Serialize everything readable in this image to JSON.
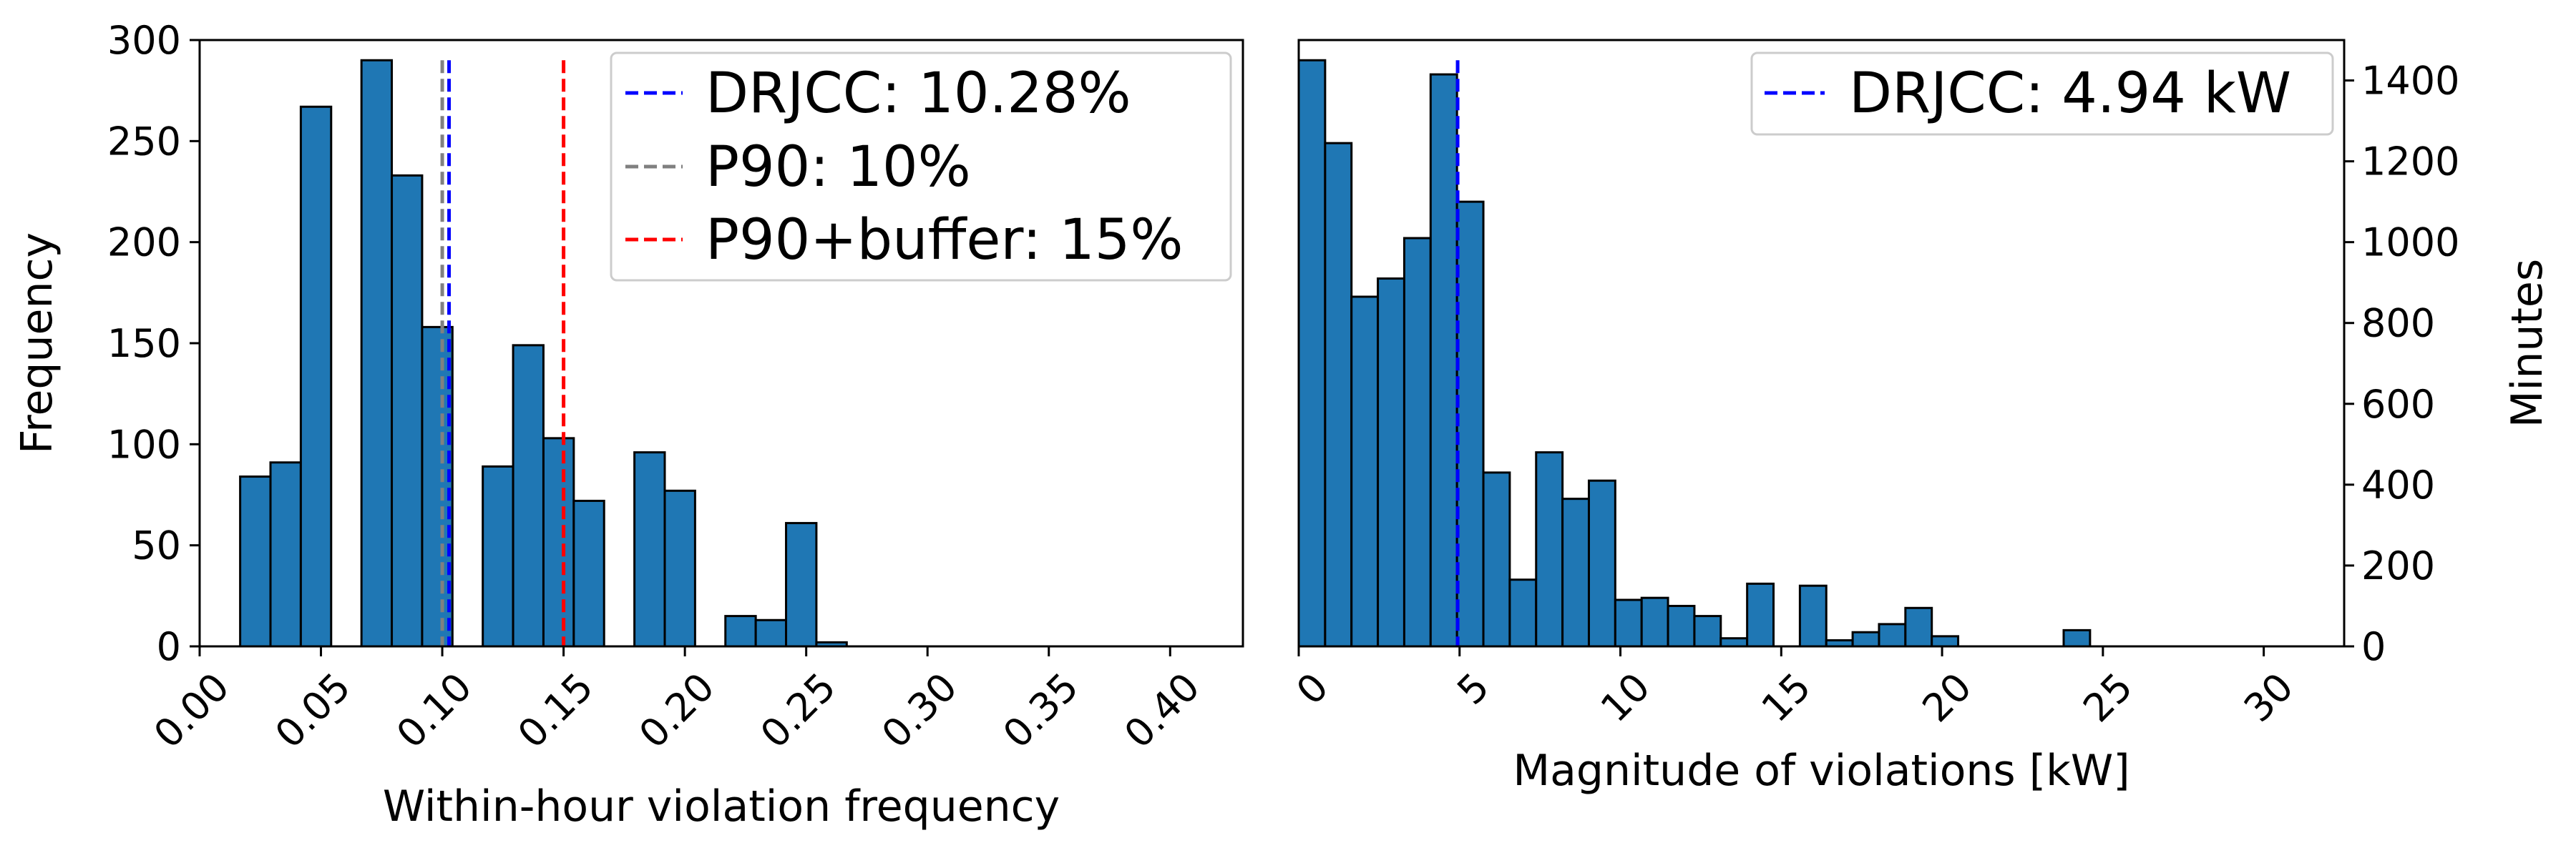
{
  "chart_data": [
    {
      "type": "bar",
      "subtype": "histogram",
      "xlabel": "Within-hour violation frequency",
      "ylabel": "Frequency",
      "xlim": [
        0.0,
        0.43
      ],
      "ylim": [
        0,
        300
      ],
      "xticks": [
        0.0,
        0.05,
        0.1,
        0.15,
        0.2,
        0.25,
        0.3,
        0.35,
        0.4
      ],
      "xtick_labels": [
        "0.00",
        "0.05",
        "0.10",
        "0.15",
        "0.20",
        "0.25",
        "0.30",
        "0.35",
        "0.40"
      ],
      "yticks": [
        0,
        50,
        100,
        150,
        200,
        250,
        300
      ],
      "ytick_labels": [
        "0",
        "50",
        "100",
        "150",
        "200",
        "250",
        "300"
      ],
      "bar_color": "#1f77b4",
      "bins": [
        {
          "x0": 0.0167,
          "x1": 0.0292,
          "value": 84
        },
        {
          "x0": 0.0292,
          "x1": 0.0417,
          "value": 91
        },
        {
          "x0": 0.0417,
          "x1": 0.0542,
          "value": 267
        },
        {
          "x0": 0.0542,
          "x1": 0.0667,
          "value": 0
        },
        {
          "x0": 0.0667,
          "x1": 0.0792,
          "value": 290
        },
        {
          "x0": 0.0792,
          "x1": 0.0917,
          "value": 233
        },
        {
          "x0": 0.0917,
          "x1": 0.1042,
          "value": 158
        },
        {
          "x0": 0.1042,
          "x1": 0.1167,
          "value": 0
        },
        {
          "x0": 0.1167,
          "x1": 0.1292,
          "value": 89
        },
        {
          "x0": 0.1292,
          "x1": 0.1417,
          "value": 149
        },
        {
          "x0": 0.1417,
          "x1": 0.1542,
          "value": 103
        },
        {
          "x0": 0.1542,
          "x1": 0.1667,
          "value": 72
        },
        {
          "x0": 0.1667,
          "x1": 0.1792,
          "value": 0
        },
        {
          "x0": 0.1792,
          "x1": 0.1917,
          "value": 96
        },
        {
          "x0": 0.1917,
          "x1": 0.2042,
          "value": 77
        },
        {
          "x0": 0.2042,
          "x1": 0.2167,
          "value": 0
        },
        {
          "x0": 0.2167,
          "x1": 0.2292,
          "value": 15
        },
        {
          "x0": 0.2292,
          "x1": 0.2417,
          "value": 13
        },
        {
          "x0": 0.2417,
          "x1": 0.2542,
          "value": 61
        },
        {
          "x0": 0.2542,
          "x1": 0.2667,
          "value": 2
        }
      ],
      "vlines": [
        {
          "label": "P90: 10%",
          "x": 0.1,
          "color": "#808080"
        },
        {
          "label": "DRJCC: 10.28%",
          "x": 0.1028,
          "color": "#0000ff"
        },
        {
          "label": "P90+buffer: 15%",
          "x": 0.15,
          "color": "#ff0000"
        }
      ],
      "vline_top": 290,
      "legend": {
        "placement": "top-right",
        "entries": [
          {
            "label": "DRJCC: 10.28%",
            "color": "#0000ff"
          },
          {
            "label": "P90: 10%",
            "color": "#808080"
          },
          {
            "label": "P90+buffer: 15%",
            "color": "#ff0000"
          }
        ]
      }
    },
    {
      "type": "bar",
      "subtype": "histogram",
      "xlabel": "Magnitude of violations [kW]",
      "ylabel": "Minutes",
      "y_axis_side": "right",
      "xlim": [
        0,
        32.5
      ],
      "ylim": [
        0,
        1500
      ],
      "xticks": [
        0,
        5,
        10,
        15,
        20,
        25,
        30
      ],
      "xtick_labels": [
        "0",
        "5",
        "10",
        "15",
        "20",
        "25",
        "30"
      ],
      "yticks": [
        0,
        200,
        400,
        600,
        800,
        1000,
        1200,
        1400
      ],
      "ytick_labels": [
        "0",
        "200",
        "400",
        "600",
        "800",
        "1000",
        "1200",
        "1400"
      ],
      "bar_color": "#1f77b4",
      "bin_start": 0,
      "bin_width": 0.82,
      "values": [
        1450,
        1245,
        865,
        910,
        1010,
        1415,
        1100,
        430,
        165,
        480,
        365,
        410,
        115,
        120,
        100,
        75,
        20,
        155,
        0,
        150,
        15,
        35,
        55,
        95,
        25,
        0,
        0,
        0,
        0,
        40
      ],
      "vlines": [
        {
          "label": "DRJCC: 4.94 kW",
          "x": 4.94,
          "color": "#0000ff"
        }
      ],
      "vline_top": 1450,
      "legend": {
        "placement": "top-right",
        "entries": [
          {
            "label": "DRJCC: 4.94 kW",
            "color": "#0000ff"
          }
        ]
      }
    }
  ]
}
